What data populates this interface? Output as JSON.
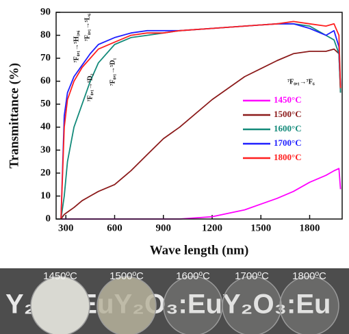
{
  "chart_data": {
    "type": "line",
    "xlabel": "Wave length (nm)",
    "ylabel": "Transmittance (%)",
    "xlim": [
      240,
      2000
    ],
    "ylim": [
      0,
      90
    ],
    "xticks": [
      300,
      600,
      900,
      1200,
      1500,
      1800
    ],
    "yticks": [
      0,
      10,
      20,
      30,
      40,
      50,
      60,
      70,
      80,
      90
    ],
    "x": [
      270,
      290,
      310,
      350,
      400,
      450,
      500,
      600,
      700,
      800,
      900,
      1000,
      1200,
      1400,
      1600,
      1700,
      1800,
      1900,
      1950,
      1980,
      1990
    ],
    "series": [
      {
        "name": "1450°C",
        "color": "#ff00ff",
        "values": [
          0,
          0,
          0,
          0,
          0,
          0,
          0,
          0,
          0,
          0,
          0,
          0,
          1,
          4,
          9,
          12,
          16,
          19,
          21,
          22,
          13
        ]
      },
      {
        "name": "1500°C",
        "color": "#8b1a1a",
        "values": [
          0,
          2,
          3,
          5,
          8,
          10,
          12,
          15,
          21,
          28,
          35,
          40,
          52,
          62,
          69,
          72,
          73,
          73,
          74,
          72,
          55
        ]
      },
      {
        "name": "1600°C",
        "color": "#138a7a",
        "values": [
          0,
          10,
          25,
          40,
          50,
          60,
          68,
          76,
          79,
          80,
          81,
          82,
          83,
          84,
          85,
          85,
          84,
          80,
          78,
          72,
          55
        ]
      },
      {
        "name": "1700°C",
        "color": "#1f1fff",
        "values": [
          0,
          45,
          55,
          62,
          67,
          72,
          76,
          79,
          81,
          82,
          82,
          82,
          83,
          84,
          85,
          85,
          83,
          80,
          82,
          75,
          58
        ]
      },
      {
        "name": "1800°C",
        "color": "#ff1f1f",
        "values": [
          0,
          40,
          52,
          60,
          66,
          70,
          74,
          77,
          80,
          81,
          81,
          82,
          83,
          84,
          85,
          86,
          85,
          84,
          85,
          80,
          57
        ]
      }
    ],
    "annotations": [
      "⁷F₀,₁→⁵H₃,₆",
      "⁷F₀,₁→⁵L₆",
      "⁷F₀,₁→⁵D₂",
      "⁷F₀,₁→⁵D₁",
      "⁷F₀,₁→⁷F₆"
    ]
  },
  "photo": {
    "background_text": "Y₂O₃:EuY₂O₃:EuY₂O₃:Eu",
    "labels": [
      "1450ºC",
      "1500ºC",
      "1600ºC",
      "1700ºC",
      "1800ºC"
    ]
  }
}
